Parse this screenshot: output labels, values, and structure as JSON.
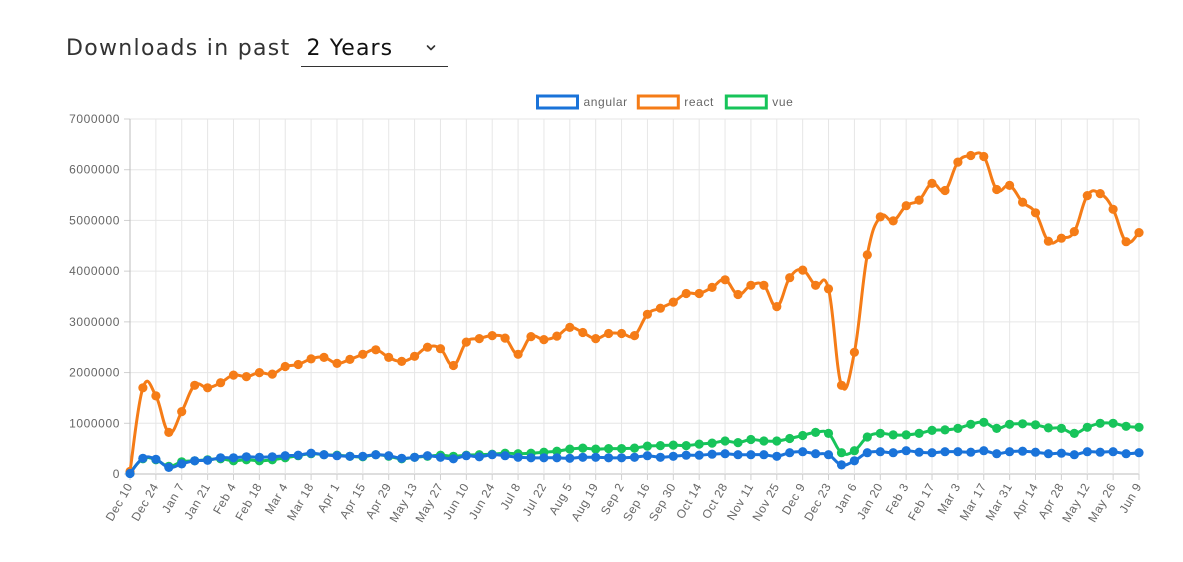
{
  "header": {
    "label": "Downloads in past",
    "selected_period": "2 Years"
  },
  "chart_data": {
    "type": "line",
    "ylim": [
      0,
      7000000
    ],
    "yticks": [
      0,
      1000000,
      2000000,
      3000000,
      4000000,
      5000000,
      6000000,
      7000000
    ],
    "grid": true,
    "legend_position": "top",
    "x": [
      "Dec 10",
      "Dec 17",
      "Dec 24",
      "Dec 31",
      "Jan 7",
      "Jan 14",
      "Jan 21",
      "Jan 28",
      "Feb 4",
      "Feb 11",
      "Feb 18",
      "Feb 25",
      "Mar 4",
      "Mar 11",
      "Mar 18",
      "Mar 25",
      "Apr 1",
      "Apr 8",
      "Apr 15",
      "Apr 22",
      "Apr 29",
      "May 6",
      "May 13",
      "May 20",
      "May 27",
      "Jun 3",
      "Jun 10",
      "Jun 17",
      "Jun 24",
      "Jul 1",
      "Jul 8",
      "Jul 15",
      "Jul 22",
      "Jul 29",
      "Aug 5",
      "Aug 12",
      "Aug 19",
      "Aug 26",
      "Sep 2",
      "Sep 9",
      "Sep 16",
      "Sep 23",
      "Sep 30",
      "Oct 7",
      "Oct 14",
      "Oct 21",
      "Oct 28",
      "Nov 4",
      "Nov 11",
      "Nov 18",
      "Nov 25",
      "Dec 2",
      "Dec 9",
      "Dec 16",
      "Dec 23",
      "Dec 30",
      "Jan 6",
      "Jan 13",
      "Jan 20",
      "Jan 27",
      "Feb 3",
      "Feb 10",
      "Feb 17",
      "Feb 24",
      "Mar 3",
      "Mar 10",
      "Mar 17",
      "Mar 24",
      "Mar 31",
      "Apr 7",
      "Apr 14",
      "Apr 21",
      "Apr 28",
      "May 5",
      "May 12",
      "May 19",
      "May 26",
      "Jun 2",
      "Jun 9"
    ],
    "xtick_labels": [
      "Dec 10",
      "Dec 24",
      "Jan 7",
      "Jan 21",
      "Feb 4",
      "Feb 18",
      "Mar 4",
      "Mar 18",
      "Apr 1",
      "Apr 15",
      "Apr 29",
      "May 13",
      "May 27",
      "Jun 10",
      "Jun 24",
      "Jul 8",
      "Jul 22",
      "Aug 5",
      "Aug 19",
      "Sep 2",
      "Sep 16",
      "Sep 30",
      "Oct 14",
      "Oct 28",
      "Nov 11",
      "Nov 25",
      "Dec 9",
      "Dec 23",
      "Jan 6",
      "Jan 20",
      "Feb 3",
      "Feb 17",
      "Mar 3",
      "Mar 17",
      "Mar 31",
      "Apr 14",
      "Apr 28",
      "May 12",
      "May 26",
      "Jun 9"
    ],
    "series": [
      {
        "name": "angular",
        "color": "#1a73d9",
        "values": [
          10000,
          310000,
          290000,
          130000,
          200000,
          260000,
          270000,
          320000,
          320000,
          340000,
          330000,
          340000,
          360000,
          370000,
          410000,
          380000,
          360000,
          350000,
          350000,
          380000,
          360000,
          310000,
          330000,
          360000,
          330000,
          300000,
          360000,
          340000,
          380000,
          360000,
          330000,
          320000,
          320000,
          320000,
          310000,
          330000,
          330000,
          320000,
          320000,
          330000,
          360000,
          330000,
          350000,
          370000,
          370000,
          390000,
          400000,
          380000,
          380000,
          380000,
          350000,
          420000,
          440000,
          400000,
          380000,
          180000,
          260000,
          420000,
          440000,
          420000,
          460000,
          430000,
          420000,
          440000,
          440000,
          430000,
          460000,
          400000,
          440000,
          450000,
          430000,
          400000,
          410000,
          380000,
          440000,
          430000,
          440000,
          400000,
          420000
        ]
      },
      {
        "name": "react",
        "color": "#f57c17",
        "values": [
          50000,
          1700000,
          1540000,
          820000,
          1230000,
          1750000,
          1700000,
          1800000,
          1950000,
          1920000,
          2000000,
          1970000,
          2120000,
          2160000,
          2270000,
          2300000,
          2180000,
          2260000,
          2360000,
          2450000,
          2300000,
          2220000,
          2320000,
          2500000,
          2470000,
          2140000,
          2600000,
          2670000,
          2730000,
          2680000,
          2360000,
          2710000,
          2650000,
          2720000,
          2890000,
          2790000,
          2670000,
          2770000,
          2770000,
          2730000,
          3150000,
          3270000,
          3390000,
          3560000,
          3560000,
          3680000,
          3830000,
          3540000,
          3720000,
          3720000,
          3300000,
          3870000,
          4020000,
          3720000,
          3650000,
          1750000,
          2400000,
          4320000,
          5070000,
          4990000,
          5290000,
          5400000,
          5730000,
          5590000,
          6150000,
          6280000,
          6260000,
          5610000,
          5690000,
          5360000,
          5150000,
          4590000,
          4650000,
          4780000,
          5490000,
          5530000,
          5220000,
          4580000,
          4760000
        ]
      },
      {
        "name": "vue",
        "color": "#17c45a",
        "values": [
          20000,
          300000,
          280000,
          150000,
          240000,
          260000,
          280000,
          300000,
          260000,
          280000,
          260000,
          280000,
          320000,
          360000,
          400000,
          380000,
          370000,
          350000,
          340000,
          380000,
          350000,
          300000,
          330000,
          350000,
          370000,
          350000,
          370000,
          380000,
          390000,
          410000,
          400000,
          410000,
          430000,
          450000,
          490000,
          510000,
          490000,
          500000,
          500000,
          510000,
          550000,
          560000,
          570000,
          560000,
          590000,
          610000,
          650000,
          620000,
          680000,
          650000,
          650000,
          700000,
          760000,
          820000,
          800000,
          420000,
          460000,
          730000,
          800000,
          770000,
          770000,
          800000,
          860000,
          870000,
          900000,
          980000,
          1020000,
          900000,
          980000,
          990000,
          970000,
          910000,
          900000,
          800000,
          920000,
          1000000,
          1000000,
          940000,
          920000
        ]
      }
    ]
  }
}
